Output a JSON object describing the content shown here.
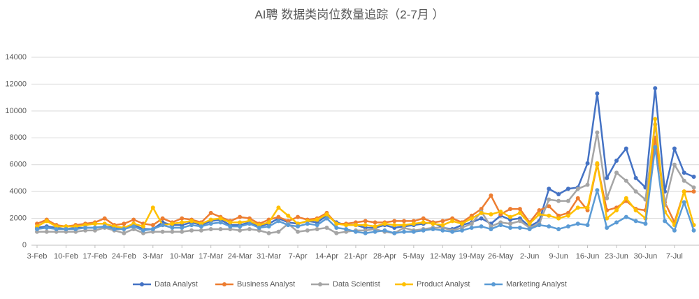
{
  "chart_data": {
    "type": "line",
    "title": "AI聘 数据类岗位数量追踪（2-7月 ）",
    "categories": [
      "3-Feb",
      null,
      null,
      "10-Feb",
      null,
      null,
      "17-Feb",
      null,
      null,
      "24-Feb",
      null,
      null,
      "3-Mar",
      null,
      null,
      "10-Mar",
      null,
      null,
      "17-Mar",
      null,
      null,
      "24-Mar",
      null,
      null,
      "31-Mar",
      null,
      null,
      "7-Apr",
      null,
      null,
      "14-Apr",
      null,
      null,
      "21-Apr",
      null,
      null,
      "28-Apr",
      null,
      null,
      "5-May",
      null,
      null,
      "12-May",
      null,
      null,
      "19-May",
      null,
      null,
      "26-May",
      null,
      null,
      "2-Jun",
      null,
      null,
      "9-Jun",
      null,
      null,
      "16-Jun",
      null,
      null,
      "23-Jun",
      null,
      null,
      "30-Jun",
      null,
      null,
      "7-Jul",
      null,
      null
    ],
    "series": [
      {
        "name": "Data Analyst",
        "color": "#4472c4",
        "values": [
          1300,
          1400,
          1300,
          1200,
          1300,
          1300,
          1300,
          1400,
          1300,
          1300,
          1500,
          1200,
          1200,
          1700,
          1500,
          1500,
          1700,
          1500,
          1800,
          1900,
          1500,
          1500,
          1700,
          1400,
          1600,
          2000,
          1700,
          1600,
          1800,
          1700,
          2200,
          1700,
          1500,
          1500,
          1300,
          1300,
          1500,
          1300,
          1400,
          1500,
          1600,
          1700,
          1300,
          1200,
          1500,
          1700,
          2000,
          1600,
          2200,
          1900,
          2000,
          1400,
          1800,
          4200,
          3800,
          4200,
          4300,
          6100,
          11300,
          5000,
          6300,
          7200,
          5000,
          4300,
          11700,
          4000,
          7200,
          5400,
          5100
        ]
      },
      {
        "name": "Business Analyst",
        "color": "#ed7d31",
        "values": [
          1600,
          1900,
          1500,
          1400,
          1500,
          1600,
          1700,
          2000,
          1500,
          1600,
          1900,
          1600,
          1500,
          2000,
          1700,
          2000,
          1900,
          1700,
          2400,
          2100,
          1800,
          2100,
          2000,
          1600,
          1900,
          2100,
          1800,
          2100,
          1900,
          2000,
          2400,
          1600,
          1600,
          1700,
          1800,
          1700,
          1700,
          1800,
          1800,
          1800,
          2000,
          1700,
          1800,
          2000,
          1700,
          2200,
          2700,
          3700,
          2300,
          2700,
          2700,
          1700,
          2600,
          2900,
          2200,
          2400,
          3500,
          2600,
          6000,
          2600,
          2800,
          3300,
          2700,
          2600,
          8000,
          3200,
          1700,
          4000,
          4000
        ]
      },
      {
        "name": "Data Scientist",
        "color": "#a5a5a5",
        "values": [
          1000,
          1000,
          1000,
          1000,
          1000,
          1100,
          1100,
          1300,
          1100,
          900,
          1200,
          900,
          1000,
          1000,
          1000,
          1000,
          1100,
          1100,
          1200,
          1200,
          1200,
          1100,
          1200,
          1100,
          900,
          1000,
          1600,
          1000,
          1100,
          1200,
          1300,
          900,
          1000,
          1100,
          1100,
          1200,
          1000,
          900,
          1300,
          1100,
          1200,
          1300,
          1300,
          1100,
          1300,
          1600,
          2500,
          1400,
          1700,
          1600,
          1800,
          1300,
          1600,
          3400,
          3300,
          3300,
          4200,
          4500,
          8400,
          3500,
          5400,
          4800,
          4000,
          3400,
          9000,
          3000,
          6000,
          4800,
          4300
        ]
      },
      {
        "name": "Product Analyst",
        "color": "#ffc000",
        "values": [
          1400,
          1800,
          1400,
          1400,
          1400,
          1500,
          1600,
          1600,
          1400,
          1300,
          1600,
          1400,
          2800,
          1500,
          1600,
          1700,
          1800,
          1600,
          1900,
          2000,
          1700,
          1700,
          1800,
          1500,
          1700,
          2800,
          2200,
          1600,
          1800,
          1900,
          2300,
          1600,
          1500,
          1500,
          1500,
          1400,
          1600,
          1500,
          1500,
          1600,
          1700,
          1600,
          1500,
          1800,
          1600,
          2000,
          2400,
          2300,
          2500,
          2100,
          2400,
          1600,
          2300,
          2200,
          2000,
          2200,
          2800,
          2800,
          6100,
          2000,
          2600,
          3500,
          2600,
          2000,
          9400,
          2500,
          1500,
          4000,
          1500
        ]
      },
      {
        "name": "Marketing Analyst",
        "color": "#5b9bd5",
        "values": [
          1200,
          1300,
          1200,
          1200,
          1200,
          1300,
          1300,
          1400,
          1200,
          1200,
          1400,
          1100,
          1200,
          1500,
          1300,
          1300,
          1500,
          1400,
          1600,
          1700,
          1400,
          1400,
          1600,
          1300,
          1400,
          1800,
          1500,
          1400,
          1600,
          1500,
          2000,
          1300,
          1200,
          1000,
          900,
          1000,
          1100,
          900,
          1000,
          1000,
          1100,
          1200,
          1100,
          1000,
          1100,
          1300,
          1400,
          1200,
          1500,
          1300,
          1300,
          1200,
          1500,
          1400,
          1200,
          1400,
          1600,
          1500,
          4100,
          1300,
          1700,
          2100,
          1800,
          1600,
          7300,
          1800,
          1100,
          3200,
          1100
        ]
      }
    ],
    "ylim": [
      0,
      14000
    ],
    "yticks": [
      0,
      2000,
      4000,
      6000,
      8000,
      10000,
      12000,
      14000
    ],
    "grid": true,
    "legend": "bottom"
  }
}
